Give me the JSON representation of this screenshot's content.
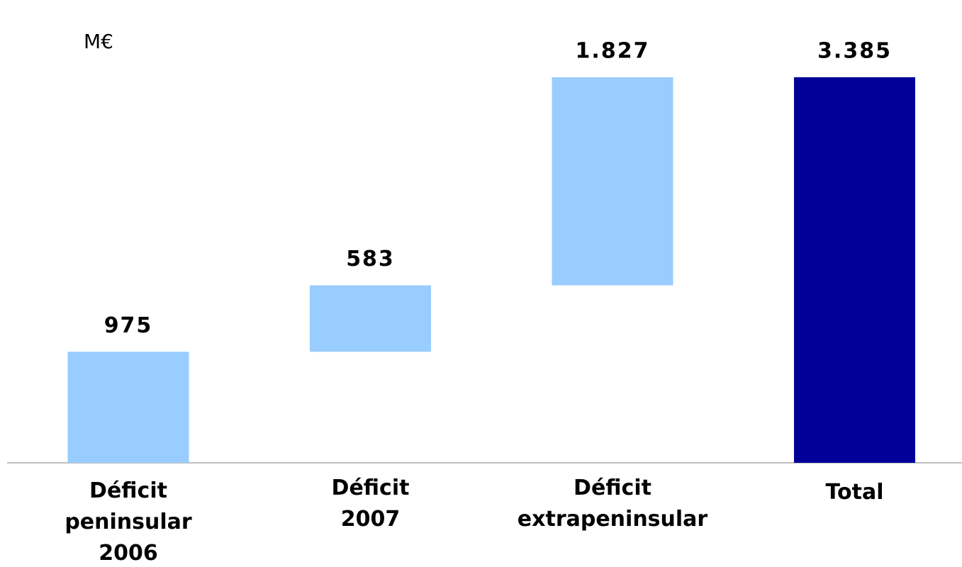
{
  "chart_data": {
    "type": "waterfall",
    "unit": "M€",
    "categories": [
      "Déficit\npeninsular\n2006",
      "Déficit\n2007",
      "Déficit\nextrapeninsular",
      "Total"
    ],
    "values": [
      975,
      583,
      1827,
      3385
    ],
    "value_labels": [
      "975",
      "583",
      "1.827",
      "3.385"
    ],
    "measures": [
      "relative",
      "relative",
      "relative",
      "total"
    ],
    "color": "#99ccff",
    "total_color": "#000099"
  }
}
